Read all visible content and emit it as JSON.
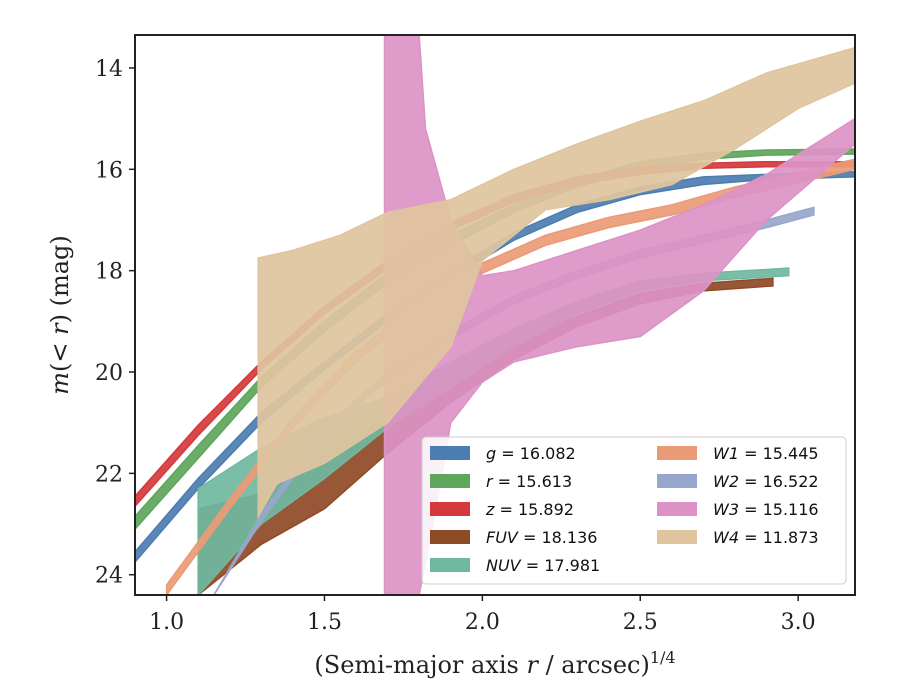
{
  "chart_data": {
    "type": "area",
    "xlabel_parts": {
      "pre": "(Semi-major axis ",
      "var": "r",
      "post": " / arcsec)",
      "sup": "1/4"
    },
    "ylabel_parts": {
      "var1": "m",
      "mid": "(< ",
      "var2": "r",
      "post": ") (mag)"
    },
    "xlim": [
      0.9,
      3.18
    ],
    "ylim": [
      24.4,
      13.35
    ],
    "y_inverted": true,
    "xticks": [
      1.0,
      1.5,
      2.0,
      2.5,
      3.0
    ],
    "xtick_labels": [
      "1.0",
      "1.5",
      "2.0",
      "2.5",
      "3.0"
    ],
    "yticks": [
      14,
      16,
      18,
      20,
      22,
      24
    ],
    "ytick_labels": [
      "14",
      "16",
      "18",
      "20",
      "22",
      "24"
    ],
    "grid": false,
    "legend_placement": "lower-right",
    "series": [
      {
        "name": "g = 16.082",
        "color": "#4c7db0",
        "upper": [
          [
            0.9,
            23.55
          ],
          [
            1.1,
            22.1
          ],
          [
            1.3,
            20.8
          ],
          [
            1.5,
            19.8
          ],
          [
            1.7,
            18.85
          ],
          [
            1.9,
            18.0
          ],
          [
            2.1,
            17.25
          ],
          [
            2.3,
            16.7
          ],
          [
            2.5,
            16.35
          ],
          [
            2.7,
            16.15
          ],
          [
            2.9,
            16.1
          ],
          [
            3.18,
            16.05
          ]
        ],
        "lower": [
          [
            0.9,
            23.75
          ],
          [
            1.1,
            22.3
          ],
          [
            1.3,
            21.0
          ],
          [
            1.5,
            19.95
          ],
          [
            1.7,
            19.0
          ],
          [
            1.9,
            18.15
          ],
          [
            2.1,
            17.4
          ],
          [
            2.3,
            16.85
          ],
          [
            2.5,
            16.5
          ],
          [
            2.7,
            16.3
          ],
          [
            2.9,
            16.2
          ],
          [
            3.18,
            16.15
          ]
        ]
      },
      {
        "name": "r = 15.613",
        "color": "#5ea65b",
        "upper": [
          [
            0.9,
            22.85
          ],
          [
            1.1,
            21.45
          ],
          [
            1.3,
            20.1
          ],
          [
            1.5,
            19.0
          ],
          [
            1.7,
            18.05
          ],
          [
            1.9,
            17.3
          ],
          [
            2.1,
            16.7
          ],
          [
            2.3,
            16.2
          ],
          [
            2.5,
            15.85
          ],
          [
            2.7,
            15.68
          ],
          [
            2.9,
            15.62
          ],
          [
            3.18,
            15.6
          ]
        ],
        "lower": [
          [
            0.9,
            23.1
          ],
          [
            1.1,
            21.7
          ],
          [
            1.3,
            20.3
          ],
          [
            1.5,
            19.2
          ],
          [
            1.7,
            18.25
          ],
          [
            1.9,
            17.5
          ],
          [
            2.1,
            16.85
          ],
          [
            2.3,
            16.35
          ],
          [
            2.5,
            16.0
          ],
          [
            2.7,
            15.8
          ],
          [
            2.9,
            15.72
          ],
          [
            3.18,
            15.7
          ]
        ]
      },
      {
        "name": "z = 15.892",
        "color": "#d4393b",
        "upper": [
          [
            0.9,
            22.45
          ],
          [
            1.1,
            21.05
          ],
          [
            1.3,
            19.8
          ],
          [
            1.5,
            18.7
          ],
          [
            1.7,
            17.8
          ],
          [
            1.9,
            17.05
          ],
          [
            2.1,
            16.5
          ],
          [
            2.3,
            16.15
          ],
          [
            2.5,
            15.95
          ],
          [
            2.7,
            15.88
          ],
          [
            2.9,
            15.85
          ],
          [
            3.18,
            15.85
          ]
        ],
        "lower": [
          [
            0.9,
            22.65
          ],
          [
            1.1,
            21.25
          ],
          [
            1.3,
            19.95
          ],
          [
            1.5,
            18.85
          ],
          [
            1.7,
            17.95
          ],
          [
            1.9,
            17.2
          ],
          [
            2.1,
            16.65
          ],
          [
            2.3,
            16.3
          ],
          [
            2.5,
            16.1
          ],
          [
            2.7,
            15.98
          ],
          [
            2.9,
            15.95
          ],
          [
            3.18,
            15.95
          ]
        ]
      },
      {
        "name": "FUV = 18.136",
        "color": "#8f4a26",
        "upper": [
          [
            1.1,
            22.7
          ],
          [
            1.3,
            22.4
          ],
          [
            1.5,
            21.6
          ],
          [
            1.7,
            20.9
          ],
          [
            1.9,
            20.15
          ],
          [
            2.1,
            19.45
          ],
          [
            2.3,
            18.9
          ],
          [
            2.5,
            18.45
          ],
          [
            2.7,
            18.25
          ],
          [
            2.92,
            18.15
          ]
        ],
        "lower": [
          [
            1.1,
            24.4
          ],
          [
            1.3,
            23.4
          ],
          [
            1.5,
            22.7
          ],
          [
            1.7,
            21.6
          ],
          [
            1.9,
            20.6
          ],
          [
            2.1,
            19.75
          ],
          [
            2.3,
            19.1
          ],
          [
            2.5,
            18.65
          ],
          [
            2.7,
            18.4
          ],
          [
            2.92,
            18.3
          ]
        ]
      },
      {
        "name": "NUV = 17.981",
        "color": "#6fb9a0",
        "upper": [
          [
            1.1,
            22.3
          ],
          [
            1.3,
            21.5
          ],
          [
            1.5,
            20.9
          ],
          [
            1.7,
            20.5
          ],
          [
            1.9,
            19.8
          ],
          [
            2.1,
            19.15
          ],
          [
            2.3,
            18.6
          ],
          [
            2.5,
            18.2
          ],
          [
            2.7,
            18.05
          ],
          [
            2.97,
            17.95
          ]
        ],
        "lower": [
          [
            1.1,
            24.4
          ],
          [
            1.3,
            23.0
          ],
          [
            1.5,
            22.1
          ],
          [
            1.7,
            21.1
          ],
          [
            1.9,
            20.3
          ],
          [
            2.1,
            19.5
          ],
          [
            2.3,
            18.85
          ],
          [
            2.5,
            18.4
          ],
          [
            2.7,
            18.2
          ],
          [
            2.97,
            18.1
          ]
        ]
      },
      {
        "name": "W1 = 15.445",
        "color": "#eb9a76",
        "upper": [
          [
            1.0,
            24.2
          ],
          [
            1.2,
            22.5
          ],
          [
            1.4,
            20.9
          ],
          [
            1.6,
            19.6
          ],
          [
            1.8,
            18.6
          ],
          [
            2.0,
            17.85
          ],
          [
            2.2,
            17.3
          ],
          [
            2.4,
            16.95
          ],
          [
            2.6,
            16.7
          ],
          [
            2.8,
            16.35
          ],
          [
            3.18,
            15.8
          ]
        ],
        "lower": [
          [
            1.0,
            24.4
          ],
          [
            1.2,
            22.7
          ],
          [
            1.4,
            21.1
          ],
          [
            1.6,
            19.8
          ],
          [
            1.8,
            18.8
          ],
          [
            2.0,
            18.05
          ],
          [
            2.2,
            17.5
          ],
          [
            2.4,
            17.15
          ],
          [
            2.6,
            16.9
          ],
          [
            2.8,
            16.55
          ],
          [
            3.18,
            16.0
          ]
        ]
      },
      {
        "name": "W2 = 16.522",
        "color": "#97a7cb",
        "upper": [
          [
            1.15,
            24.4
          ],
          [
            1.3,
            22.8
          ],
          [
            1.5,
            21.1
          ],
          [
            1.7,
            20.0
          ],
          [
            1.9,
            19.2
          ],
          [
            2.1,
            18.5
          ],
          [
            2.3,
            18.0
          ],
          [
            2.5,
            17.6
          ],
          [
            2.7,
            17.3
          ],
          [
            2.9,
            17.0
          ],
          [
            3.05,
            16.75
          ]
        ],
        "lower": [
          [
            1.15,
            24.4
          ],
          [
            1.3,
            22.95
          ],
          [
            1.5,
            21.25
          ],
          [
            1.7,
            20.15
          ],
          [
            1.9,
            19.35
          ],
          [
            2.1,
            18.65
          ],
          [
            2.3,
            18.15
          ],
          [
            2.5,
            17.75
          ],
          [
            2.7,
            17.45
          ],
          [
            2.9,
            17.15
          ],
          [
            3.05,
            16.9
          ]
        ]
      },
      {
        "name": "W3 = 15.116",
        "color": "#dc92c5",
        "upper": [
          [
            1.69,
            13.35
          ],
          [
            1.8,
            13.35
          ],
          [
            1.82,
            15.2
          ],
          [
            1.9,
            17.0
          ],
          [
            2.0,
            18.1
          ],
          [
            2.1,
            18.0
          ],
          [
            2.3,
            17.6
          ],
          [
            2.5,
            17.2
          ],
          [
            2.7,
            16.7
          ],
          [
            2.9,
            16.1
          ],
          [
            3.18,
            15.0
          ]
        ],
        "lower": [
          [
            1.69,
            24.4
          ],
          [
            1.8,
            24.4
          ],
          [
            1.85,
            22.8
          ],
          [
            1.9,
            21.0
          ],
          [
            2.0,
            20.2
          ],
          [
            2.1,
            19.8
          ],
          [
            2.3,
            19.5
          ],
          [
            2.5,
            19.3
          ],
          [
            2.7,
            18.4
          ],
          [
            2.9,
            17.0
          ],
          [
            3.18,
            15.5
          ]
        ]
      },
      {
        "name": "W4 = 11.873",
        "color": "#dfc49e",
        "upper": [
          [
            1.29,
            17.75
          ],
          [
            1.4,
            17.6
          ],
          [
            1.55,
            17.3
          ],
          [
            1.7,
            16.85
          ],
          [
            1.9,
            16.6
          ],
          [
            2.1,
            16.0
          ],
          [
            2.3,
            15.5
          ],
          [
            2.5,
            15.05
          ],
          [
            2.7,
            14.65
          ],
          [
            2.9,
            14.1
          ],
          [
            3.18,
            13.6
          ]
        ],
        "lower": [
          [
            1.29,
            22.85
          ],
          [
            1.35,
            22.2
          ],
          [
            1.5,
            21.8
          ],
          [
            1.7,
            21.0
          ],
          [
            1.9,
            19.5
          ],
          [
            2.0,
            17.8
          ],
          [
            2.2,
            16.8
          ],
          [
            2.4,
            16.6
          ],
          [
            2.6,
            16.3
          ],
          [
            2.8,
            15.6
          ],
          [
            3.0,
            14.8
          ],
          [
            3.18,
            14.3
          ]
        ]
      }
    ]
  }
}
